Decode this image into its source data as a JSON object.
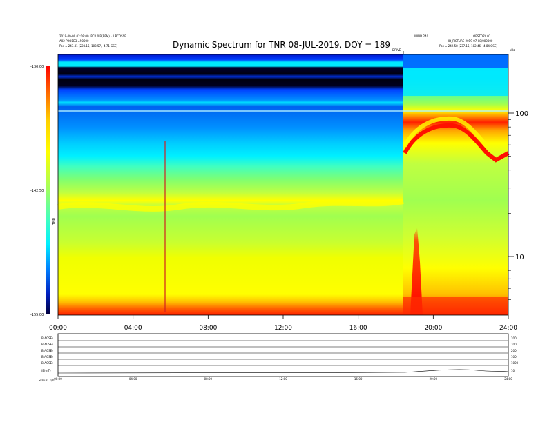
{
  "header": {
    "title": "Dynamic Spectrum for TNR 08-JUL-2019, DOY = 189",
    "meta_line1": "2019-09-00 02:09:00 (PCR 0 B(BPM) - 1 RCOSSP",
    "meta_line2": "A02 PROBE3 ±50000",
    "meta_left_pos": "Pos = 243.81 (223.15, 103.57, -4.71 GSE)",
    "meta_mid": "WIND 240",
    "meta_right_top": "LOBSTORY 01",
    "meta_right_mid": "ID_PICTURE 2019-07-08/000000",
    "meta_right_pos": "Pos = 249.58 (237.15, 102.46, -4.84 GSE)",
    "marker_label": "DRIVE",
    "corner_label": "kHz"
  },
  "colorbar": {
    "top_label": "-130.00",
    "mid_label": "-142.50",
    "bottom_label": "-155.00",
    "unit_label": "TNR",
    "colors": [
      "#000050",
      "#0000c0",
      "#0060ff",
      "#00ffff",
      "#80ff80",
      "#ffff00",
      "#ff8000",
      "#ff0000"
    ]
  },
  "chart_data": {
    "type": "heatmap",
    "title": "Dynamic Spectrum for TNR 08-JUL-2019, DOY = 189",
    "x_tick_labels": [
      "00:00",
      "04:00",
      "08:00",
      "12:00",
      "16:00",
      "20:00",
      "24:00"
    ],
    "x_ticks_hours": [
      0,
      4,
      8,
      12,
      16,
      20,
      24
    ],
    "xlim_hours": [
      0,
      24
    ],
    "y_scale": "log",
    "ylim_khz": [
      4,
      245
    ],
    "y_tick_labels": [
      "100",
      "10"
    ],
    "y_ticks_khz": [
      100,
      10
    ],
    "y_unit_label": "kHz",
    "colorbar_range": [
      -155,
      -130
    ],
    "description_of_features": {
      "event_start_hour": 18.5,
      "burst_hour": 19.1,
      "vertical_line_hour": 5.7
    }
  },
  "lower_panel": {
    "row_labels": [
      "B(AGSE)",
      "B(AGSE)",
      "B(AGSE)",
      "B(AGSE)",
      "B(AGSE)",
      "|B|(nT)"
    ],
    "right_values": [
      "200",
      "100",
      "200",
      "100",
      "1000",
      "10"
    ],
    "x_tick_labels": [
      "00:00",
      "04:00",
      "08:00",
      "12:00",
      "16:00",
      "20:00",
      "24:00"
    ],
    "footer_label": "Status",
    "footer_value": "0/0"
  }
}
